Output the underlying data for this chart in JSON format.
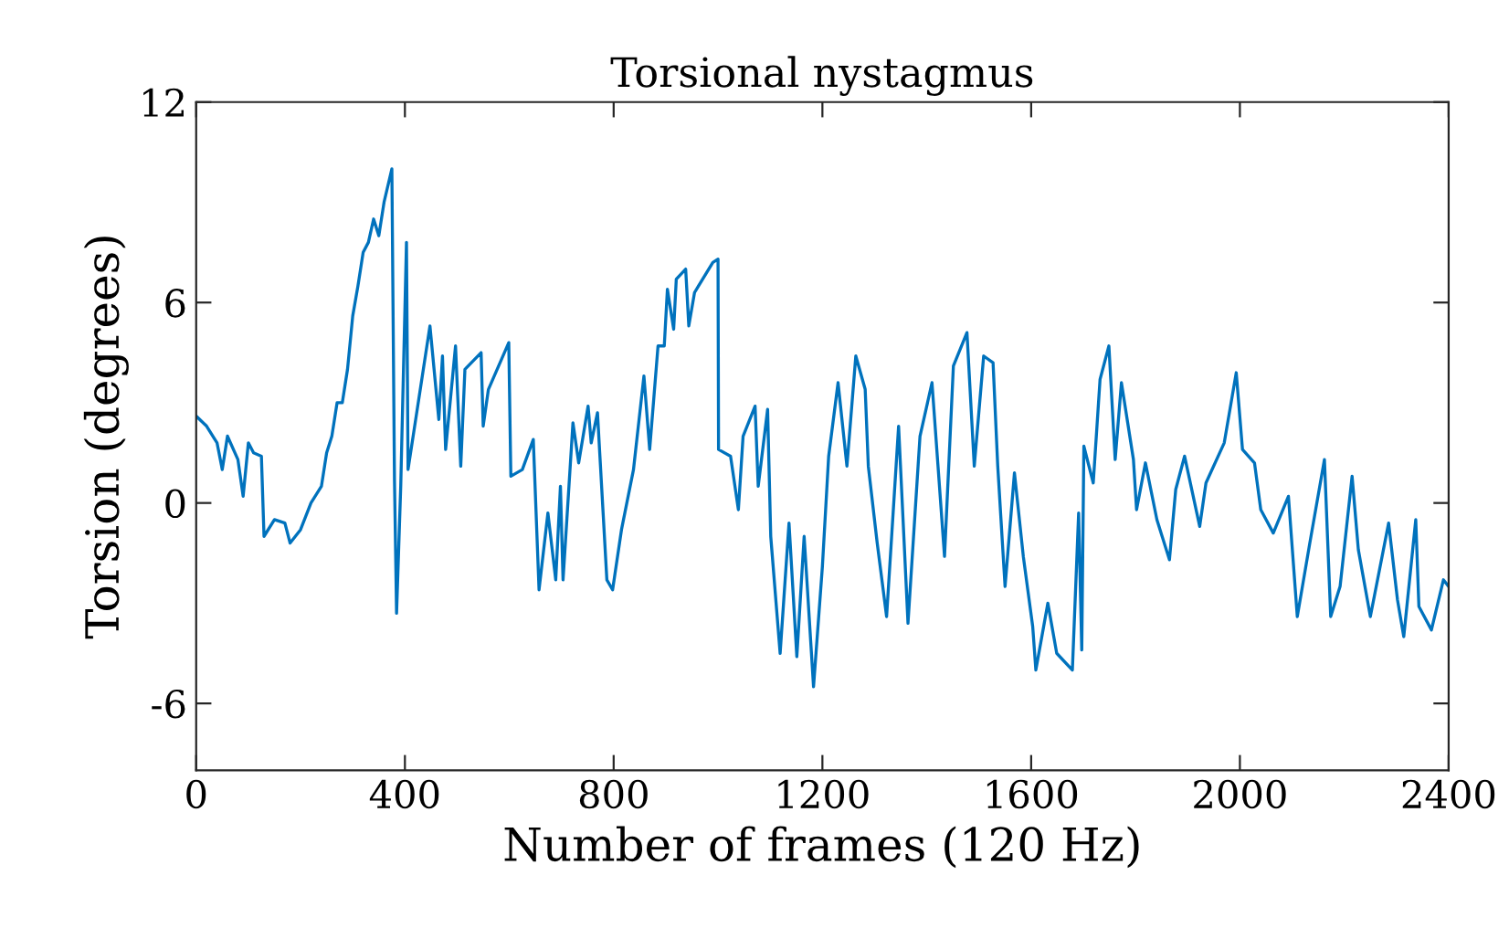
{
  "chart_data": {
    "type": "line",
    "title": "Torsional nystagmus",
    "xlabel": "Number of frames (120 Hz)",
    "ylabel": "Torsion (degrees)",
    "xlim": [
      0,
      2400
    ],
    "ylim": [
      -8,
      12
    ],
    "xticks": [
      0,
      400,
      800,
      1200,
      1600,
      2000,
      2400
    ],
    "yticks": [
      -6,
      0,
      6,
      12
    ],
    "grid": false,
    "series": [
      {
        "color": "#0072bd",
        "x": [
          0,
          20,
          40,
          50,
          60,
          80,
          90,
          100,
          110,
          125,
          130,
          150,
          170,
          180,
          200,
          220,
          240,
          250,
          260,
          270,
          280,
          290,
          300,
          310,
          320,
          330,
          340,
          350,
          360,
          375,
          380,
          384,
          392,
          403,
          406,
          448,
          465,
          472,
          478,
          497,
          507,
          515,
          546,
          550,
          560,
          599,
          603,
          625,
          646,
          657,
          674,
          689,
          698,
          703,
          722,
          733,
          751,
          757,
          769,
          787,
          798,
          815,
          838,
          858,
          869,
          885,
          897,
          903,
          915,
          920,
          938,
          944,
          955,
          990,
          1000,
          1001,
          1024,
          1039,
          1048,
          1071,
          1077,
          1095,
          1101,
          1119,
          1136,
          1151,
          1165,
          1183,
          1200,
          1212,
          1230,
          1247,
          1264,
          1282,
          1288,
          1305,
          1323,
          1346,
          1364,
          1387,
          1410,
          1434,
          1451,
          1477,
          1491,
          1509,
          1527,
          1536,
          1550,
          1568,
          1585,
          1603,
          1609,
          1632,
          1649,
          1679,
          1691,
          1697,
          1701,
          1719,
          1732,
          1749,
          1761,
          1773,
          1796,
          1802,
          1819,
          1841,
          1865,
          1877,
          1894,
          1923,
          1935,
          1970,
          1993,
          2005,
          2028,
          2040,
          2064,
          2093,
          2110,
          2134,
          2162,
          2174,
          2192,
          2215,
          2227,
          2250,
          2285,
          2302,
          2314,
          2337,
          2343,
          2367,
          2390,
          2400
        ],
        "values": [
          2.6,
          2.3,
          1.8,
          1.0,
          2.0,
          1.3,
          0.2,
          1.8,
          1.5,
          1.4,
          -1.0,
          -0.5,
          -0.6,
          -1.2,
          -0.8,
          0.0,
          0.5,
          1.5,
          2.0,
          3.0,
          3.0,
          4.0,
          5.6,
          6.5,
          7.5,
          7.8,
          8.5,
          8.0,
          9.0,
          10.0,
          0.7,
          -3.3,
          0.5,
          7.8,
          1.0,
          5.3,
          2.5,
          4.4,
          1.6,
          4.7,
          1.1,
          4.0,
          4.5,
          2.3,
          3.4,
          4.8,
          0.8,
          1.0,
          1.9,
          -2.6,
          -0.3,
          -2.3,
          0.5,
          -2.3,
          2.4,
          1.2,
          2.9,
          1.8,
          2.7,
          -2.3,
          -2.6,
          -0.8,
          1.0,
          3.8,
          1.6,
          4.7,
          4.7,
          6.4,
          5.2,
          6.7,
          7.0,
          5.3,
          6.3,
          7.2,
          7.3,
          1.6,
          1.4,
          -0.2,
          2.0,
          2.9,
          0.5,
          2.8,
          -1.0,
          -4.5,
          -0.6,
          -4.6,
          -1.0,
          -5.5,
          -1.9,
          1.4,
          3.6,
          1.1,
          4.4,
          3.4,
          1.1,
          -1.2,
          -3.4,
          2.3,
          -3.6,
          2.0,
          3.6,
          -1.6,
          4.1,
          5.1,
          1.1,
          4.4,
          4.2,
          1.1,
          -2.5,
          0.9,
          -1.6,
          -3.7,
          -5.0,
          -3.0,
          -4.5,
          -5.0,
          -0.3,
          -4.4,
          1.7,
          0.6,
          3.7,
          4.7,
          1.3,
          3.6,
          1.3,
          -0.2,
          1.2,
          -0.5,
          -1.7,
          0.4,
          1.4,
          -0.7,
          0.6,
          1.8,
          3.9,
          1.6,
          1.2,
          -0.2,
          -0.9,
          0.2,
          -3.4,
          -1.2,
          1.3,
          -3.4,
          -2.5,
          0.8,
          -1.4,
          -3.4,
          -0.6,
          -2.9,
          -4.0,
          -0.5,
          -3.1,
          -3.8,
          -2.3,
          -2.5
        ]
      }
    ]
  }
}
